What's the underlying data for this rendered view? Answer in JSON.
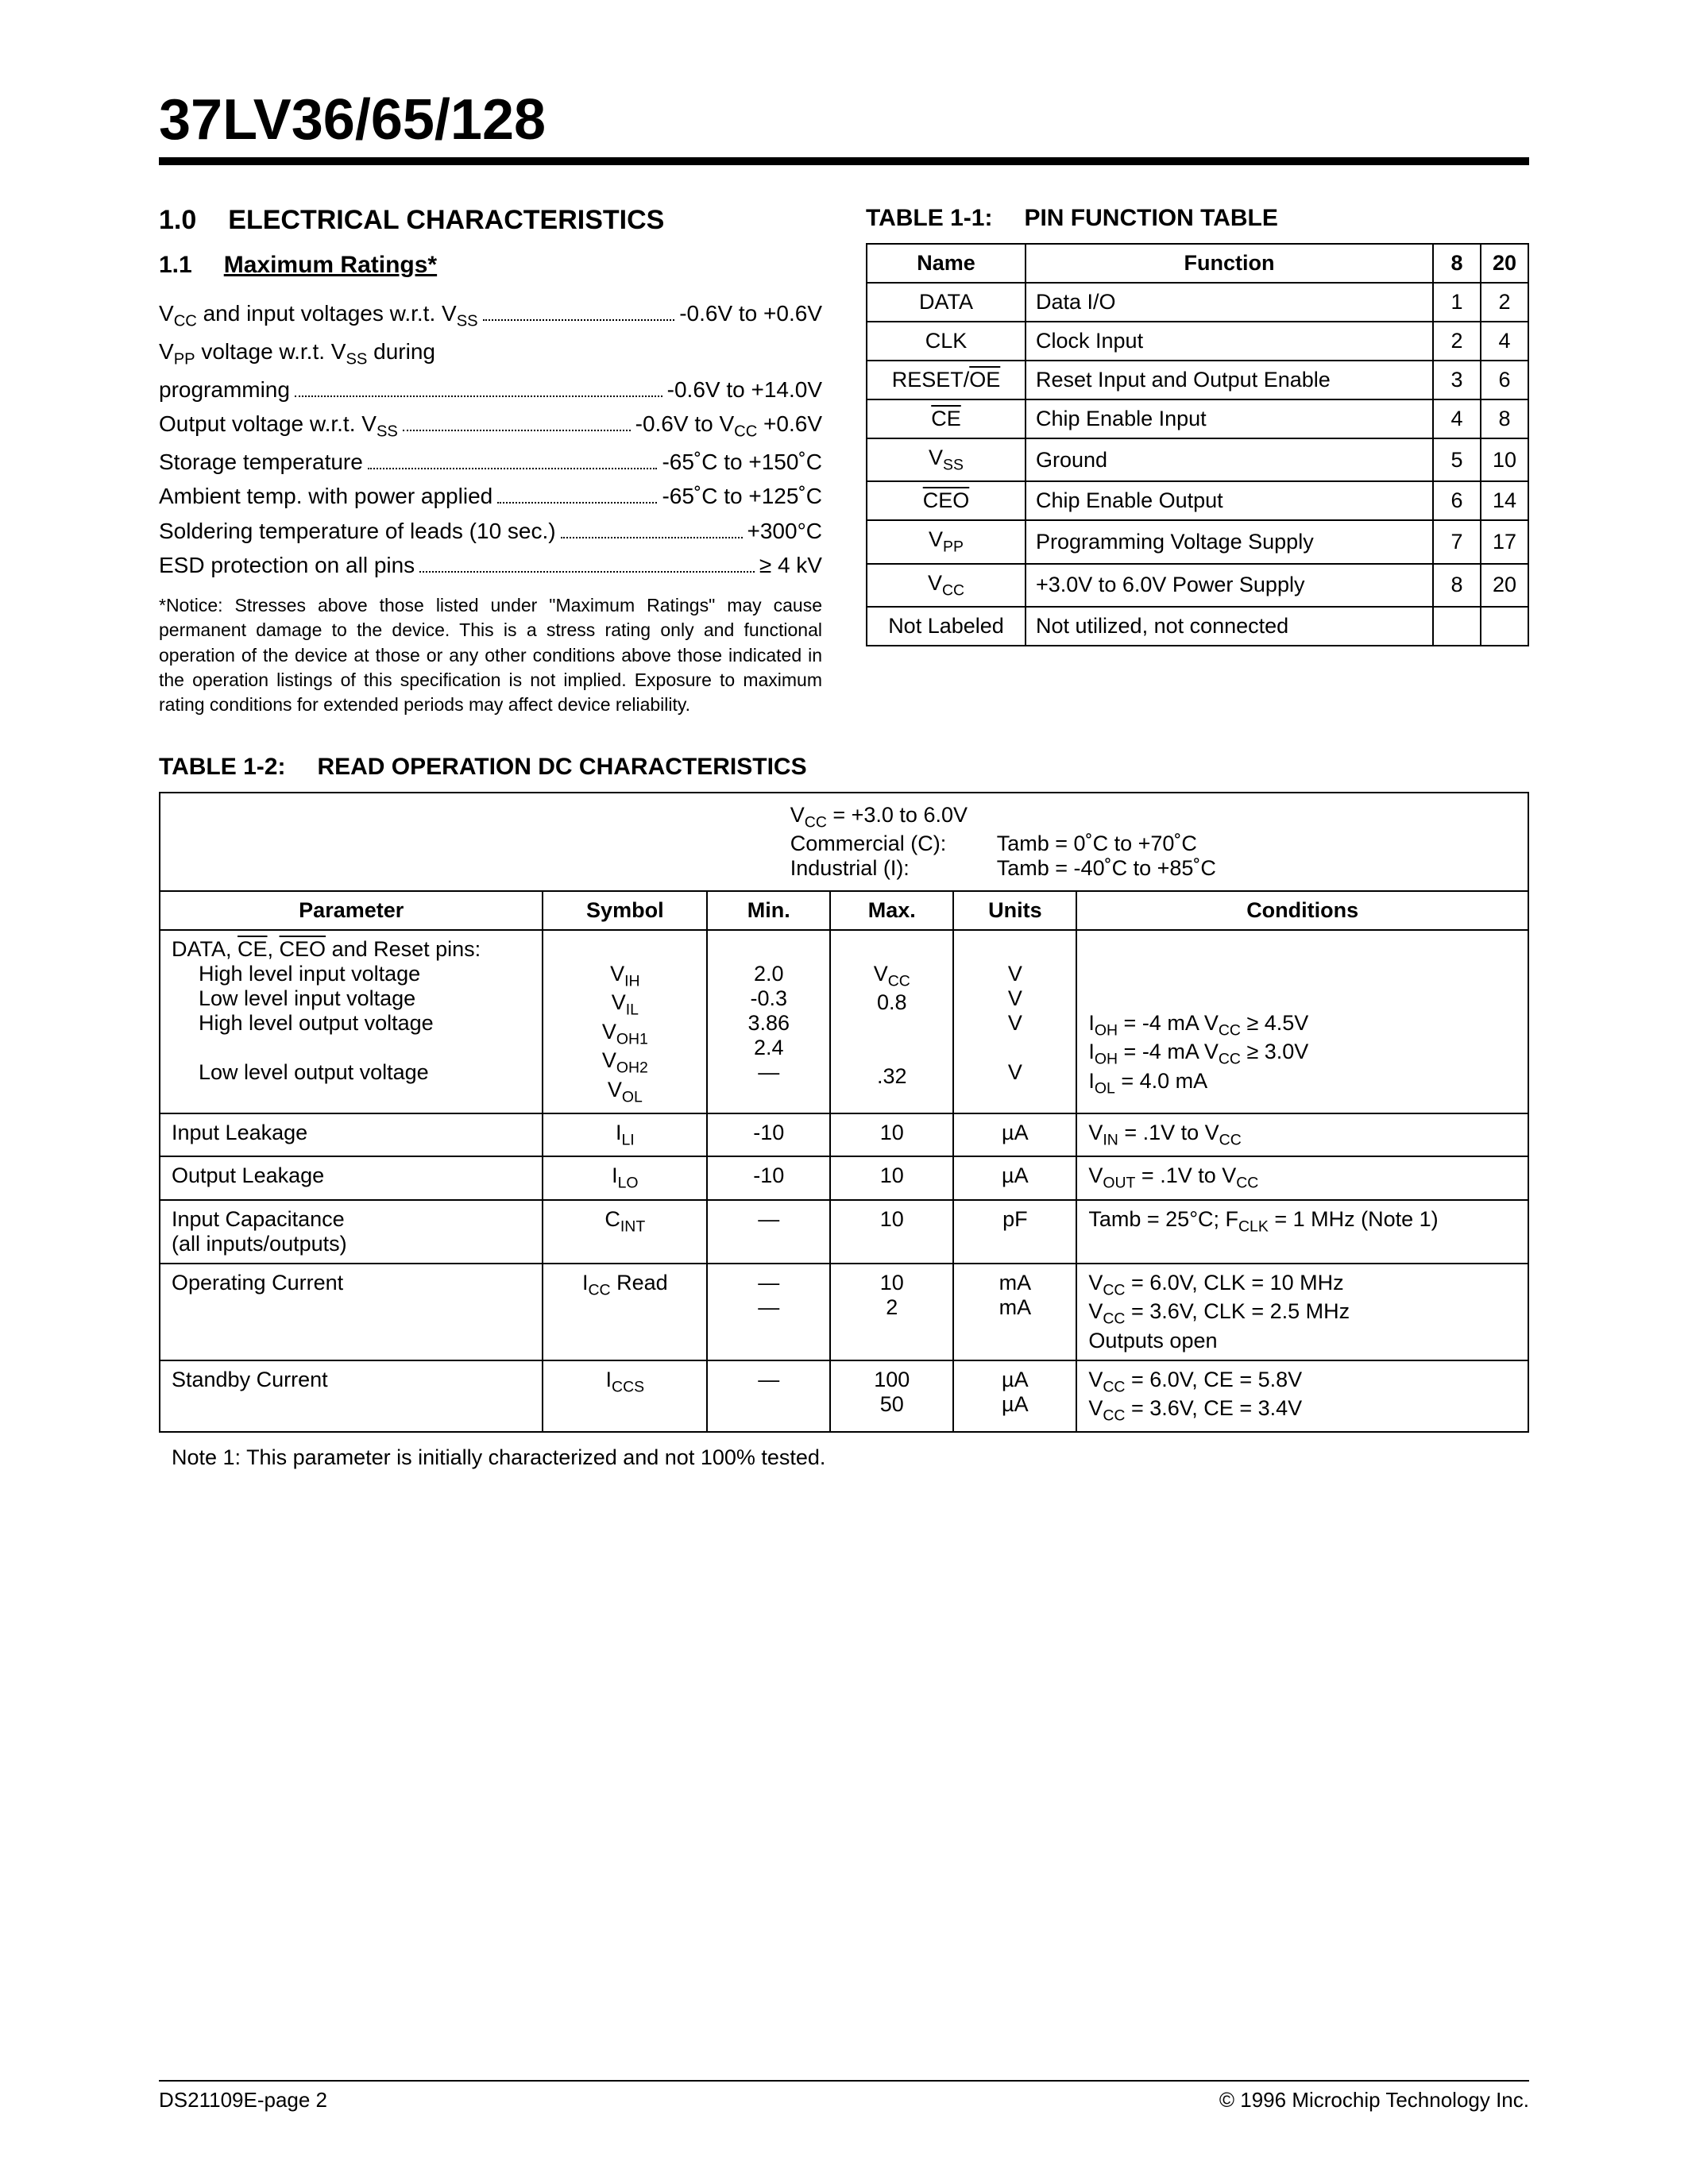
{
  "header": {
    "title": "37LV36/65/128"
  },
  "section1": {
    "num": "1.0",
    "title": "ELECTRICAL CHARACTERISTICS",
    "sub_num": "1.1",
    "sub_title": "Maximum Ratings*",
    "ratings": [
      {
        "label_pre": "V",
        "label_sub": "CC",
        "label_post": " and input voltages w.r.t. V",
        "label_sub2": "SS",
        "label_post2": "",
        "value": "-0.6V to +0.6V"
      },
      {
        "label_pre": "V",
        "label_sub": "PP",
        "label_post": " voltage w.r.t. V",
        "label_sub2": "SS",
        "label_post2": " during",
        "line2_label": " programming",
        "value": "-0.6V to +14.0V",
        "wrap": true
      },
      {
        "label_pre": "Output voltage w.r.t. V",
        "label_sub": "SS",
        "label_post": "",
        "value": "-0.6V to V",
        "value_sub": "CC",
        "value_post": " +0.6V"
      },
      {
        "label_pre": "Storage temperature",
        "value": "-65˚C to +150˚C"
      },
      {
        "label_pre": "Ambient temp. with power applied",
        "value": "-65˚C to +125˚C"
      },
      {
        "label_pre": "Soldering temperature of leads (10 sec.)",
        "value": "+300°C"
      },
      {
        "label_pre": "ESD protection on all pins",
        "value": "≥ 4 kV"
      }
    ],
    "notice": "*Notice:  Stresses above those listed under \"Maximum Ratings\" may cause permanent damage to the device.  This is a stress rating only and functional operation of the device at those or any other conditions above those indicated in the operation listings of this specification is not implied.  Exposure to maximum rating conditions for extended periods may affect device reliability."
  },
  "table11": {
    "caption_num": "TABLE 1-1:",
    "caption_title": "PIN FUNCTION TABLE",
    "headers": [
      "Name",
      "Function",
      "8",
      "20"
    ],
    "rows": [
      {
        "name_html": "DATA",
        "func": "Data I/O",
        "c8": "1",
        "c20": "2"
      },
      {
        "name_html": "CLK",
        "func": "Clock Input",
        "c8": "2",
        "c20": "4"
      },
      {
        "name_html": "RESET/<span class=\"overline\">OE</span>",
        "func": "Reset Input and Output Enable",
        "c8": "3",
        "c20": "6"
      },
      {
        "name_html": "<span class=\"overline\">CE</span>",
        "func": "Chip Enable Input",
        "c8": "4",
        "c20": "8"
      },
      {
        "name_html": "V<span class=\"sub\">SS</span>",
        "func": "Ground",
        "c8": "5",
        "c20": "10"
      },
      {
        "name_html": "<span class=\"overline\">CEO</span>",
        "func": "Chip Enable Output",
        "c8": "6",
        "c20": "14"
      },
      {
        "name_html": "V<span class=\"sub\">PP</span>",
        "func": "Programming Voltage Supply",
        "c8": "7",
        "c20": "17"
      },
      {
        "name_html": "V<span class=\"sub\">CC</span>",
        "func": "+3.0V to 6.0V Power Supply",
        "c8": "8",
        "c20": "20"
      },
      {
        "name_html": "Not Labeled",
        "func": "Not utilized, not connected",
        "c8": "",
        "c20": ""
      }
    ]
  },
  "table12": {
    "caption_num": "TABLE 1-2:",
    "caption_title": "READ OPERATION DC CHARACTERISTICS",
    "cond_lines": {
      "l1": "V<span class=\"sub\">CC</span> = +3.0 to 6.0V",
      "l2a": "Commercial (C):",
      "l2b": "Tamb =    0˚C to +70˚C",
      "l3a": "Industrial (I):",
      "l3b": "Tamb = -40˚C to +85˚C"
    },
    "headers": [
      "Parameter",
      "Symbol",
      "Min.",
      "Max.",
      "Units",
      "Conditions"
    ],
    "rows": [
      {
        "param_html": "DATA, <span class=\"overline\">CE</span>, <span class=\"overline\">CEO</span> and Reset pins:<br><span class=\"indent\">High level input voltage</span><br><span class=\"indent\">Low level input voltage</span><br><span class=\"indent\">High level output voltage</span><br><br><span class=\"indent\">Low level output voltage</span>",
        "symbol_html": "<br>V<span class=\"sub\">IH</span><br>V<span class=\"sub\">IL</span><br>V<span class=\"sub\">OH1</span><br>V<span class=\"sub\">OH2</span><br>V<span class=\"sub\">OL</span>",
        "min_html": "<br>2.0<br>-0.3<br>3.86<br>2.4<br>—",
        "max_html": "<br>V<span class=\"sub\">CC</span><br>0.8<br><br><br>.32",
        "units_html": "<br>V<br>V<br>V<br><br>V",
        "cond_html": "<br><br><br>I<span class=\"sub\">OH</span> = -4 mA V<span class=\"sub\">CC</span> ≥ 4.5V<br>I<span class=\"sub\">OH</span> = -4 mA V<span class=\"sub\">CC</span> ≥ 3.0V<br>I<span class=\"sub\">OL</span> = 4.0 mA"
      },
      {
        "param_html": "Input Leakage",
        "symbol_html": "I<span class=\"sub\">LI</span>",
        "min_html": "-10",
        "max_html": "10",
        "units_html": "µA",
        "cond_html": "V<span class=\"sub\">IN</span> = .1V to V<span class=\"sub\">CC</span>"
      },
      {
        "param_html": "Output Leakage",
        "symbol_html": "I<span class=\"sub\">LO</span>",
        "min_html": "-10",
        "max_html": "10",
        "units_html": "µA",
        "cond_html": "V<span class=\"sub\">OUT</span> = .1V to V<span class=\"sub\">CC</span>"
      },
      {
        "param_html": "Input Capacitance<br>(all inputs/outputs)",
        "symbol_html": "C<span class=\"sub\">INT</span>",
        "min_html": "—",
        "max_html": "10",
        "units_html": "pF",
        "cond_html": "Tamb = 25°C; F<span class=\"sub\">CLK</span> = 1 MHz (Note 1)"
      },
      {
        "param_html": "Operating Current",
        "symbol_html": "I<span class=\"sub\">CC</span> Read",
        "min_html": "—<br>—",
        "max_html": "10<br>2",
        "units_html": "mA<br>mA",
        "cond_html": "V<span class=\"sub\">CC</span> = 6.0V, CLK = 10 MHz<br>V<span class=\"sub\">CC</span> = 3.6V, CLK = 2.5 MHz<br>Outputs open"
      },
      {
        "param_html": "Standby Current",
        "symbol_html": "I<span class=\"sub\">CCS</span>",
        "min_html": "—",
        "max_html": "100<br>50",
        "units_html": "µA<br>µA",
        "cond_html": "V<span class=\"sub\">CC</span> = 6.0V, CE = 5.8V<br>V<span class=\"sub\">CC</span> = 3.6V, CE = 3.4V"
      }
    ],
    "note1": "Note 1:  This parameter is initially characterized and not 100% tested."
  },
  "footer": {
    "left": "DS21109E-page 2",
    "right": "© 1996 Microchip Technology Inc."
  }
}
